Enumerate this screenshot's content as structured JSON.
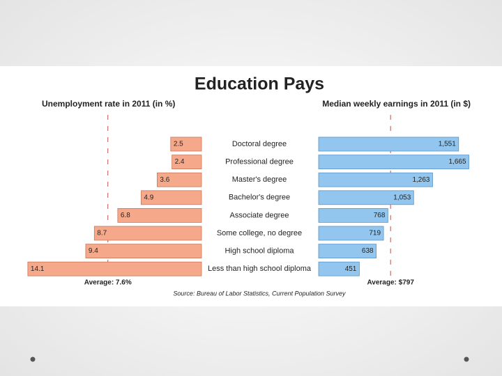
{
  "title": "Education Pays",
  "source": "Source: Bureau of Labor Statistics, Current Population Survey",
  "categories": [
    "Doctoral degree",
    "Professional degree",
    "Master's degree",
    "Bachelor's degree",
    "Associate degree",
    "Some college, no degree",
    "High school diploma",
    "Less than high school diploma"
  ],
  "chart_data": [
    {
      "type": "bar",
      "orientation": "horizontal",
      "direction": "left",
      "title": "Unemployment rate in 2011 (in %)",
      "values": [
        2.5,
        2.4,
        3.6,
        4.9,
        6.8,
        8.7,
        9.4,
        14.1
      ],
      "color": "#f6a98a",
      "xlim": [
        0,
        15
      ],
      "average": 7.6,
      "average_label": "Average: 7.6%"
    },
    {
      "type": "bar",
      "orientation": "horizontal",
      "direction": "right",
      "title": "Median weekly earnings in 2011 (in $)",
      "values": [
        1551,
        1665,
        1263,
        1053,
        768,
        719,
        638,
        451
      ],
      "value_labels": [
        "1,551",
        "1,665",
        "1,263",
        "1,053",
        "768",
        "719",
        "638",
        "451"
      ],
      "color": "#92c6ee",
      "xlim": [
        0,
        1800
      ],
      "average": 797,
      "average_label": "Average: $797"
    }
  ]
}
